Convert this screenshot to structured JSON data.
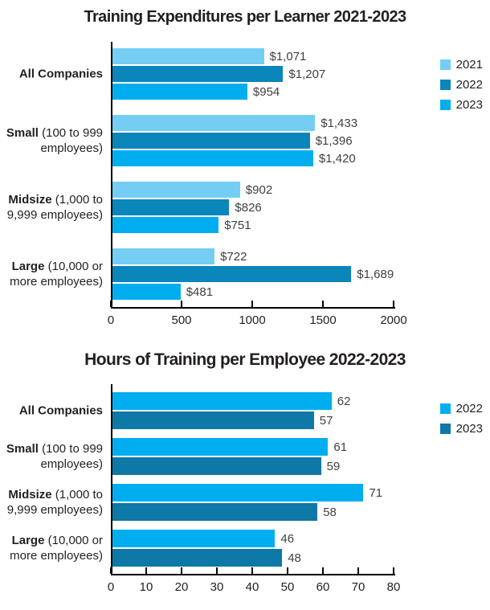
{
  "chart_data": [
    {
      "type": "bar",
      "orientation": "horizontal",
      "title": "Training Expenditures per Learner 2021-2023",
      "categories": [
        {
          "bold": "All Companies",
          "rest": ""
        },
        {
          "bold": "Small",
          "rest": " (100 to 999 employees)"
        },
        {
          "bold": "Midsize",
          "rest": " (1,000 to 9,999 employees)"
        },
        {
          "bold": "Large",
          "rest": " (10,000 or more employees)"
        }
      ],
      "series": [
        {
          "name": "2021",
          "color": "#74cef3",
          "values": [
            1071,
            1433,
            902,
            722
          ],
          "value_labels": [
            "$1,071",
            "$1,433",
            "$902",
            "$722"
          ]
        },
        {
          "name": "2022",
          "color": "#0a86ba",
          "values": [
            1207,
            1396,
            826,
            1689
          ],
          "value_labels": [
            "$1,207",
            "$1,396",
            "$826",
            "$1,689"
          ]
        },
        {
          "name": "2023",
          "color": "#00aeef",
          "values": [
            954,
            1420,
            751,
            481
          ],
          "value_labels": [
            "$954",
            "$1,420",
            "$751",
            "$481"
          ]
        }
      ],
      "xlim": [
        0,
        2000
      ],
      "xticks": [
        0,
        500,
        1000,
        1500,
        2000
      ],
      "legend_position": "top-right",
      "grid": false
    },
    {
      "type": "bar",
      "orientation": "horizontal",
      "title": "Hours of Training per Employee 2022-2023",
      "categories": [
        {
          "bold": "All Companies",
          "rest": ""
        },
        {
          "bold": "Small",
          "rest": " (100 to 999 employees)"
        },
        {
          "bold": "Midsize",
          "rest": " (1,000 to 9,999 employees)"
        },
        {
          "bold": "Large",
          "rest": " (10,000 or more employees)"
        }
      ],
      "series": [
        {
          "name": "2022",
          "color": "#00aeef",
          "values": [
            62,
            61,
            71,
            46
          ],
          "value_labels": [
            "62",
            "61",
            "71",
            "46"
          ]
        },
        {
          "name": "2023",
          "color": "#0e78a6",
          "values": [
            57,
            59,
            58,
            48
          ],
          "value_labels": [
            "57",
            "59",
            "58",
            "48"
          ]
        }
      ],
      "xlim": [
        0,
        80
      ],
      "xticks": [
        0,
        10,
        20,
        30,
        40,
        50,
        60,
        70,
        80
      ],
      "legend_position": "top-right",
      "grid": false
    }
  ]
}
